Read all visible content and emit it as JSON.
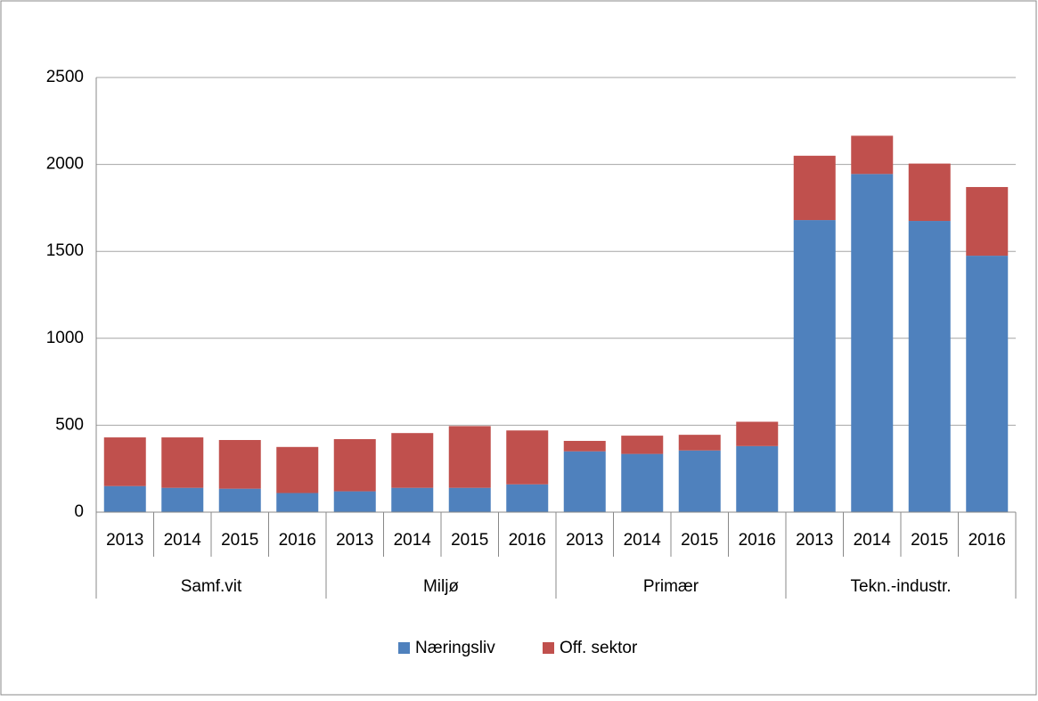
{
  "chart_data": {
    "type": "stacked_bar",
    "categories": [
      "2013",
      "2014",
      "2015",
      "2016",
      "2013",
      "2014",
      "2015",
      "2016",
      "2013",
      "2014",
      "2015",
      "2016",
      "2013",
      "2014",
      "2015",
      "2016"
    ],
    "groups": [
      "Samf.vit",
      "Miljø",
      "Primær",
      "Tekn.-industr."
    ],
    "series": [
      {
        "name": "Næringsliv",
        "color": "#4f81bd",
        "values": [
          150,
          140,
          135,
          110,
          120,
          140,
          140,
          160,
          350,
          335,
          355,
          380,
          1680,
          1945,
          1675,
          1475
        ]
      },
      {
        "name": "Off. sektor",
        "color": "#c0504d",
        "values": [
          280,
          290,
          280,
          265,
          300,
          315,
          355,
          310,
          60,
          105,
          90,
          140,
          370,
          220,
          330,
          395
        ]
      }
    ],
    "ylim": [
      0,
      2500
    ],
    "yticks": [
      0,
      500,
      1000,
      1500,
      2000,
      2500
    ],
    "grid": true,
    "legend": "bottom"
  }
}
